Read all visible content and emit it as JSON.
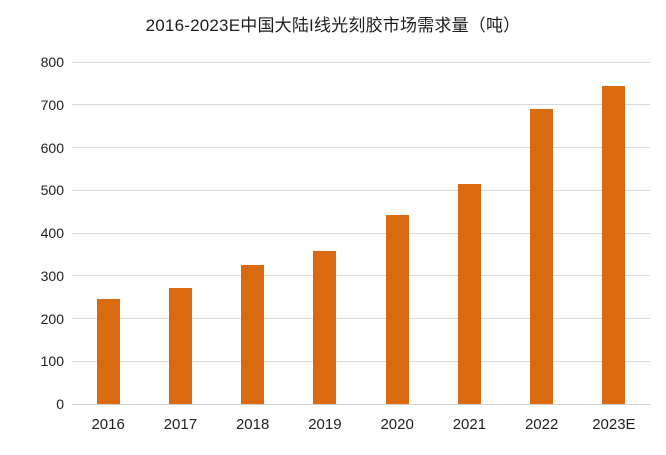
{
  "chart_data": {
    "type": "bar",
    "title": "2016-2023E中国大陆I线光刻胶市场需求量（吨）",
    "categories": [
      "2016",
      "2017",
      "2018",
      "2019",
      "2020",
      "2021",
      "2022",
      "2023E"
    ],
    "values": [
      245,
      272,
      326,
      358,
      442,
      515,
      690,
      743
    ],
    "xlabel": "",
    "ylabel": "",
    "ylim": [
      0,
      800
    ],
    "yticks": [
      0,
      100,
      200,
      300,
      400,
      500,
      600,
      700,
      800
    ],
    "grid": true,
    "legend": "none",
    "colors": {
      "bar": "#d96a10",
      "gridline": "#d9d9d9",
      "baseline": "#cfcfcf",
      "text": "#212121",
      "background": "#ffffff"
    }
  }
}
